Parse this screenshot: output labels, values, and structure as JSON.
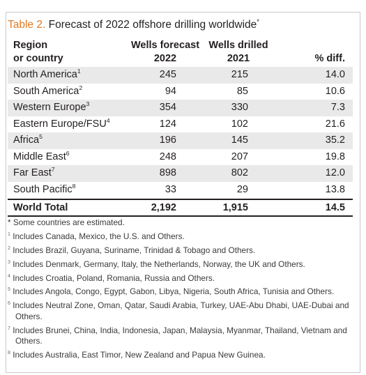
{
  "table": {
    "label": "Table 2.",
    "title": "Forecast of 2022 offshore drilling worldwide",
    "title_mark": "*",
    "header": {
      "region_line1": "Region",
      "region_line2": "or country",
      "forecast_line1": "Wells forecast",
      "forecast_line2": "2022",
      "drilled_line1": "Wells drilled",
      "drilled_line2": "2021",
      "diff": "% diff."
    },
    "rows": [
      {
        "name": "North America",
        "mark": "1",
        "forecast": "245",
        "drilled": "215",
        "diff": "14.0"
      },
      {
        "name": "South America",
        "mark": "2",
        "forecast": "94",
        "drilled": "85",
        "diff": "10.6"
      },
      {
        "name": "Western Europe",
        "mark": "3",
        "forecast": "354",
        "drilled": "330",
        "diff": "7.3"
      },
      {
        "name": "Eastern Europe/FSU",
        "mark": "4",
        "forecast": "124",
        "drilled": "102",
        "diff": "21.6"
      },
      {
        "name": "Africa",
        "mark": "5",
        "forecast": "196",
        "drilled": "145",
        "diff": "35.2"
      },
      {
        "name": "Middle East",
        "mark": "6",
        "forecast": "248",
        "drilled": "207",
        "diff": "19.8"
      },
      {
        "name": "Far East",
        "mark": "7",
        "forecast": "898",
        "drilled": "802",
        "diff": "12.0"
      },
      {
        "name": "South Pacific",
        "mark": "8",
        "forecast": "33",
        "drilled": "29",
        "diff": "13.8"
      }
    ],
    "total": {
      "name": "World Total",
      "forecast": "2,192",
      "drilled": "1,915",
      "diff": "14.5"
    },
    "notes": [
      {
        "mark": "",
        "text": "* Some countries are estimated."
      },
      {
        "mark": "1",
        "text": " Includes Canada, Mexico, the U.S. and Others."
      },
      {
        "mark": "2",
        "text": " Includes Brazil, Guyana, Suriname, Trinidad & Tobago and Others."
      },
      {
        "mark": "3",
        "text": " Includes Denmark, Germany, Italy, the Netherlands, Norway, the UK and Others."
      },
      {
        "mark": "4",
        "text": " Includes Croatia, Poland, Romania, Russia and Others."
      },
      {
        "mark": "5",
        "text": " Includes Angola, Congo, Egypt, Gabon, Libya, Nigeria, South Africa, Tunisia and Others."
      },
      {
        "mark": "6",
        "text": " Includes Neutral Zone, Oman, Qatar, Saudi Arabia, Turkey, UAE-Abu Dhabi, UAE-Dubai and Others."
      },
      {
        "mark": "7",
        "text": " Includes Brunei, China, India, Indonesia, Japan, Malaysia, Myanmar, Thailand, Vietnam and Others."
      },
      {
        "mark": "8",
        "text": " Includes Australia, East Timor, New Zealand and Papua New Guinea."
      }
    ],
    "colors": {
      "label": "#e07a26",
      "shade": "#e9e9ea",
      "text": "#231f20"
    }
  }
}
